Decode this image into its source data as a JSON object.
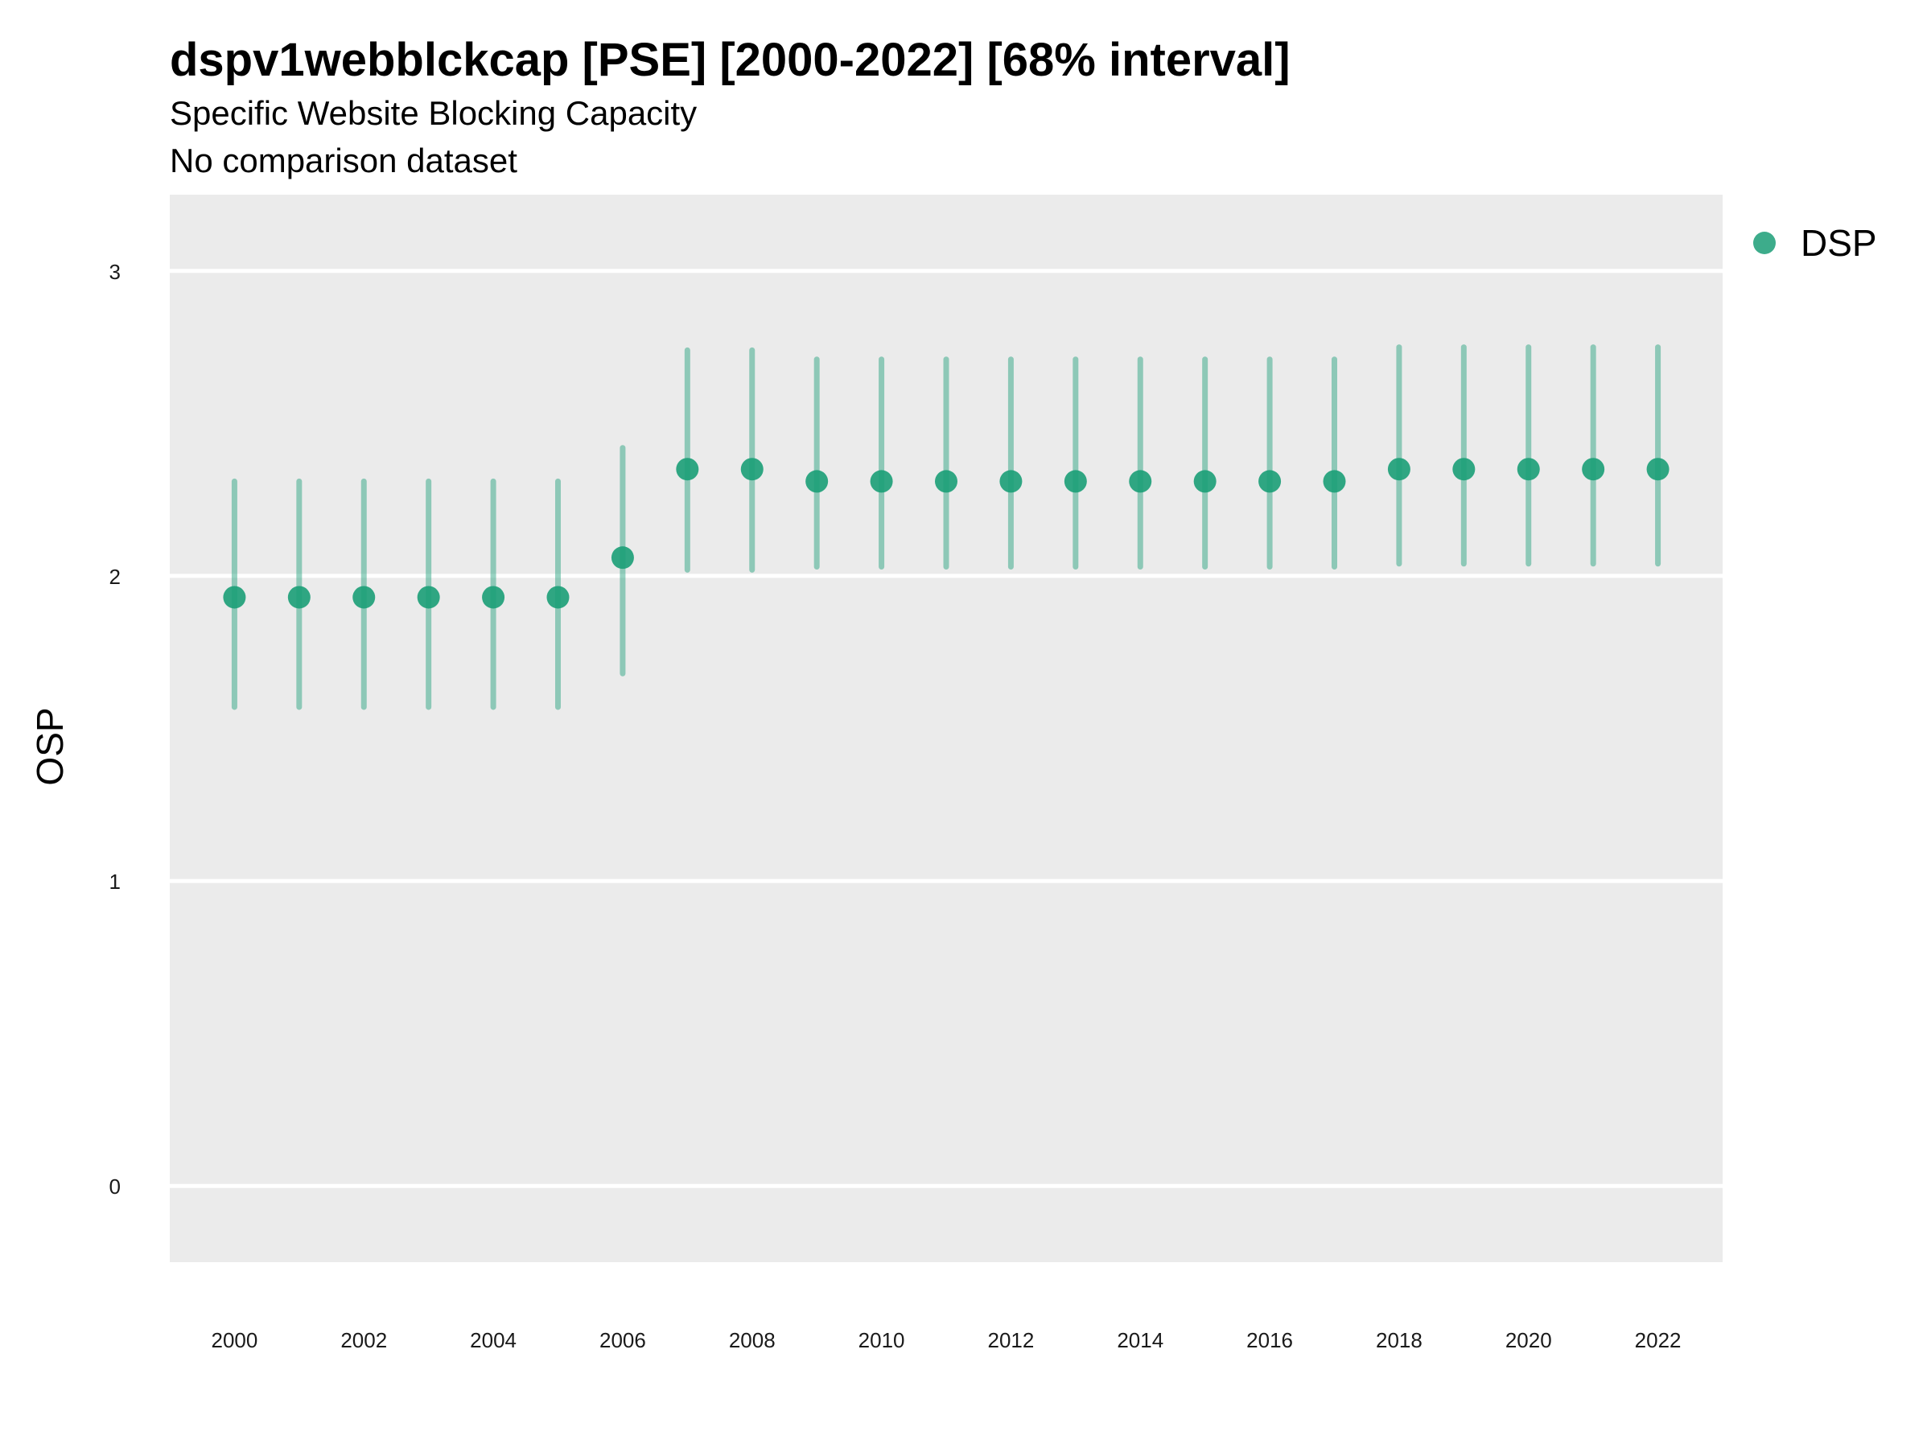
{
  "chart_data": {
    "type": "scatter",
    "title": "dspv1webblckcap [PSE] [2000-2022] [68% interval]",
    "subtitle": "Specific Website Blocking Capacity",
    "subtitle2": "No comparison dataset",
    "xlabel": "",
    "ylabel": "OSP",
    "xlim": [
      1999,
      2023
    ],
    "ylim": [
      -0.25,
      3.25
    ],
    "y_ticks": [
      0,
      1,
      2,
      3
    ],
    "x_ticks": [
      2000,
      2002,
      2004,
      2006,
      2008,
      2010,
      2012,
      2014,
      2016,
      2018,
      2020,
      2022
    ],
    "grid": true,
    "legend_position": "top-right",
    "series": [
      {
        "name": "DSP",
        "color": "#1b9e77",
        "x": [
          2000,
          2001,
          2002,
          2003,
          2004,
          2005,
          2006,
          2007,
          2008,
          2009,
          2010,
          2011,
          2012,
          2013,
          2014,
          2015,
          2016,
          2017,
          2018,
          2019,
          2020,
          2021,
          2022
        ],
        "y": [
          1.93,
          1.93,
          1.93,
          1.93,
          1.93,
          1.93,
          2.06,
          2.35,
          2.35,
          2.31,
          2.31,
          2.31,
          2.31,
          2.31,
          2.31,
          2.31,
          2.31,
          2.31,
          2.35,
          2.35,
          2.35,
          2.35,
          2.35
        ],
        "lower": [
          1.57,
          1.57,
          1.57,
          1.57,
          1.57,
          1.57,
          1.68,
          2.02,
          2.02,
          2.03,
          2.03,
          2.03,
          2.03,
          2.03,
          2.03,
          2.03,
          2.03,
          2.03,
          2.04,
          2.04,
          2.04,
          2.04,
          2.04
        ],
        "upper": [
          2.31,
          2.31,
          2.31,
          2.31,
          2.31,
          2.31,
          2.42,
          2.74,
          2.74,
          2.71,
          2.71,
          2.71,
          2.71,
          2.71,
          2.71,
          2.71,
          2.71,
          2.71,
          2.75,
          2.75,
          2.75,
          2.75,
          2.75
        ]
      }
    ]
  }
}
